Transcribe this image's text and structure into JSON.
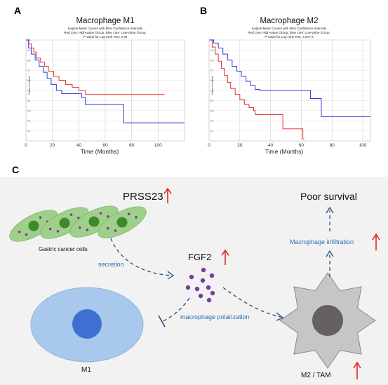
{
  "panels": {
    "A": {
      "letter": "A",
      "title": "Macrophage  M1",
      "subtitle_lines": [
        "Kaplan Meier Curves with 95% Confidence Intervals",
        "Red Line: High-value Group; Blue Line: Low-value Group.",
        "P-value for Log-rank Test: 0.04"
      ]
    },
    "B": {
      "letter": "B",
      "title": "Macrophage  M2",
      "subtitle_lines": [
        "Kaplan Meier Curves with 95% Confidence Intervals",
        "Red Line: High-value Group; Blue Line: Low-value Group.",
        "P-value for Log-rank Test: 3.37e-3"
      ]
    },
    "C": {
      "letter": "C"
    }
  },
  "colors": {
    "high": "#e8302a",
    "low": "#2a3fd8",
    "arrow_up": "#e02828",
    "label_blue": "#2a6fb0",
    "cell_green": "#9fd08a",
    "nucleus_green": "#3d8a2e",
    "dot_purple": "#7a3aa6",
    "m1_fill": "#a9c9ec",
    "m1_nucleus": "#3f6fd1",
    "m2_fill": "#c6c6c6",
    "m2_nucleus": "#665f64"
  },
  "chart_data": [
    {
      "type": "line",
      "panel": "A",
      "title": "Macrophage  M1",
      "xlabel": "Time (Months)",
      "ylabel": "Percent Survival",
      "xlim": [
        0,
        120
      ],
      "ylim": [
        0,
        1.0
      ],
      "xticks": [
        "0",
        "20",
        "40",
        "60",
        "80",
        "100"
      ],
      "yticks": [
        "0.1",
        "0.2",
        "0.3",
        "0.4",
        "0.5",
        "0.6",
        "0.7",
        "0.8",
        "0.9",
        "1.0"
      ],
      "grid": true,
      "series": [
        {
          "name": "High-value Group",
          "color": "#e8302a",
          "points": [
            [
              0,
              1.0
            ],
            [
              2,
              0.96
            ],
            [
              4,
              0.92
            ],
            [
              6,
              0.88
            ],
            [
              8,
              0.82
            ],
            [
              11,
              0.78
            ],
            [
              14,
              0.74
            ],
            [
              17,
              0.69
            ],
            [
              21,
              0.64
            ],
            [
              25,
              0.6
            ],
            [
              30,
              0.56
            ],
            [
              35,
              0.53
            ],
            [
              40,
              0.5
            ],
            [
              45,
              0.46
            ],
            [
              105,
              0.46
            ]
          ]
        },
        {
          "name": "Low-value Group",
          "color": "#2a3fd8",
          "points": [
            [
              0,
              1.0
            ],
            [
              2,
              0.92
            ],
            [
              4,
              0.86
            ],
            [
              7,
              0.8
            ],
            [
              10,
              0.74
            ],
            [
              13,
              0.68
            ],
            [
              16,
              0.62
            ],
            [
              19,
              0.56
            ],
            [
              23,
              0.5
            ],
            [
              27,
              0.47
            ],
            [
              40,
              0.47
            ],
            [
              42,
              0.43
            ],
            [
              45,
              0.36
            ],
            [
              73,
              0.36
            ],
            [
              74,
              0.18
            ],
            [
              120,
              0.18
            ]
          ]
        }
      ]
    },
    {
      "type": "line",
      "panel": "B",
      "title": "Macrophage  M2",
      "xlabel": "Time (Months)",
      "ylabel": "Percent Survival",
      "xlim": [
        0,
        105
      ],
      "ylim": [
        0,
        1.0
      ],
      "xticks": [
        "0",
        "20",
        "40",
        "60",
        "80",
        "100"
      ],
      "yticks": [
        "0.1",
        "0.2",
        "0.3",
        "0.4",
        "0.5",
        "0.6",
        "0.7",
        "0.8",
        "0.9",
        "1.0"
      ],
      "grid": true,
      "series": [
        {
          "name": "High-value Group",
          "color": "#e8302a",
          "points": [
            [
              0,
              1.0
            ],
            [
              2,
              0.93
            ],
            [
              4,
              0.86
            ],
            [
              6,
              0.79
            ],
            [
              8,
              0.72
            ],
            [
              10,
              0.65
            ],
            [
              12,
              0.58
            ],
            [
              14,
              0.52
            ],
            [
              17,
              0.46
            ],
            [
              20,
              0.41
            ],
            [
              23,
              0.36
            ],
            [
              26,
              0.33
            ],
            [
              29,
              0.3
            ],
            [
              30,
              0.26
            ],
            [
              47,
              0.26
            ],
            [
              48,
              0.12
            ],
            [
              60,
              0.12
            ],
            [
              61,
              0.02
            ],
            [
              62,
              0.02
            ]
          ]
        },
        {
          "name": "Low-value Group",
          "color": "#2a3fd8",
          "points": [
            [
              0,
              1.0
            ],
            [
              3,
              0.97
            ],
            [
              6,
              0.92
            ],
            [
              9,
              0.86
            ],
            [
              12,
              0.8
            ],
            [
              15,
              0.74
            ],
            [
              18,
              0.69
            ],
            [
              21,
              0.64
            ],
            [
              24,
              0.59
            ],
            [
              27,
              0.55
            ],
            [
              30,
              0.51
            ],
            [
              33,
              0.5
            ],
            [
              64,
              0.5
            ],
            [
              66,
              0.42
            ],
            [
              71,
              0.42
            ],
            [
              73,
              0.24
            ],
            [
              105,
              0.24
            ]
          ]
        }
      ]
    }
  ],
  "diagram": {
    "prss23": "PRSS23",
    "gastric_label": "Gastric cancer cells",
    "secretion": "secretion",
    "fgf2": "FGF2",
    "polarization": "macrophage polarization",
    "m1": "M1",
    "m2": "M2 / TAM",
    "infiltration": "Macrophage infiltration",
    "poor_survival": "Poor survival"
  }
}
